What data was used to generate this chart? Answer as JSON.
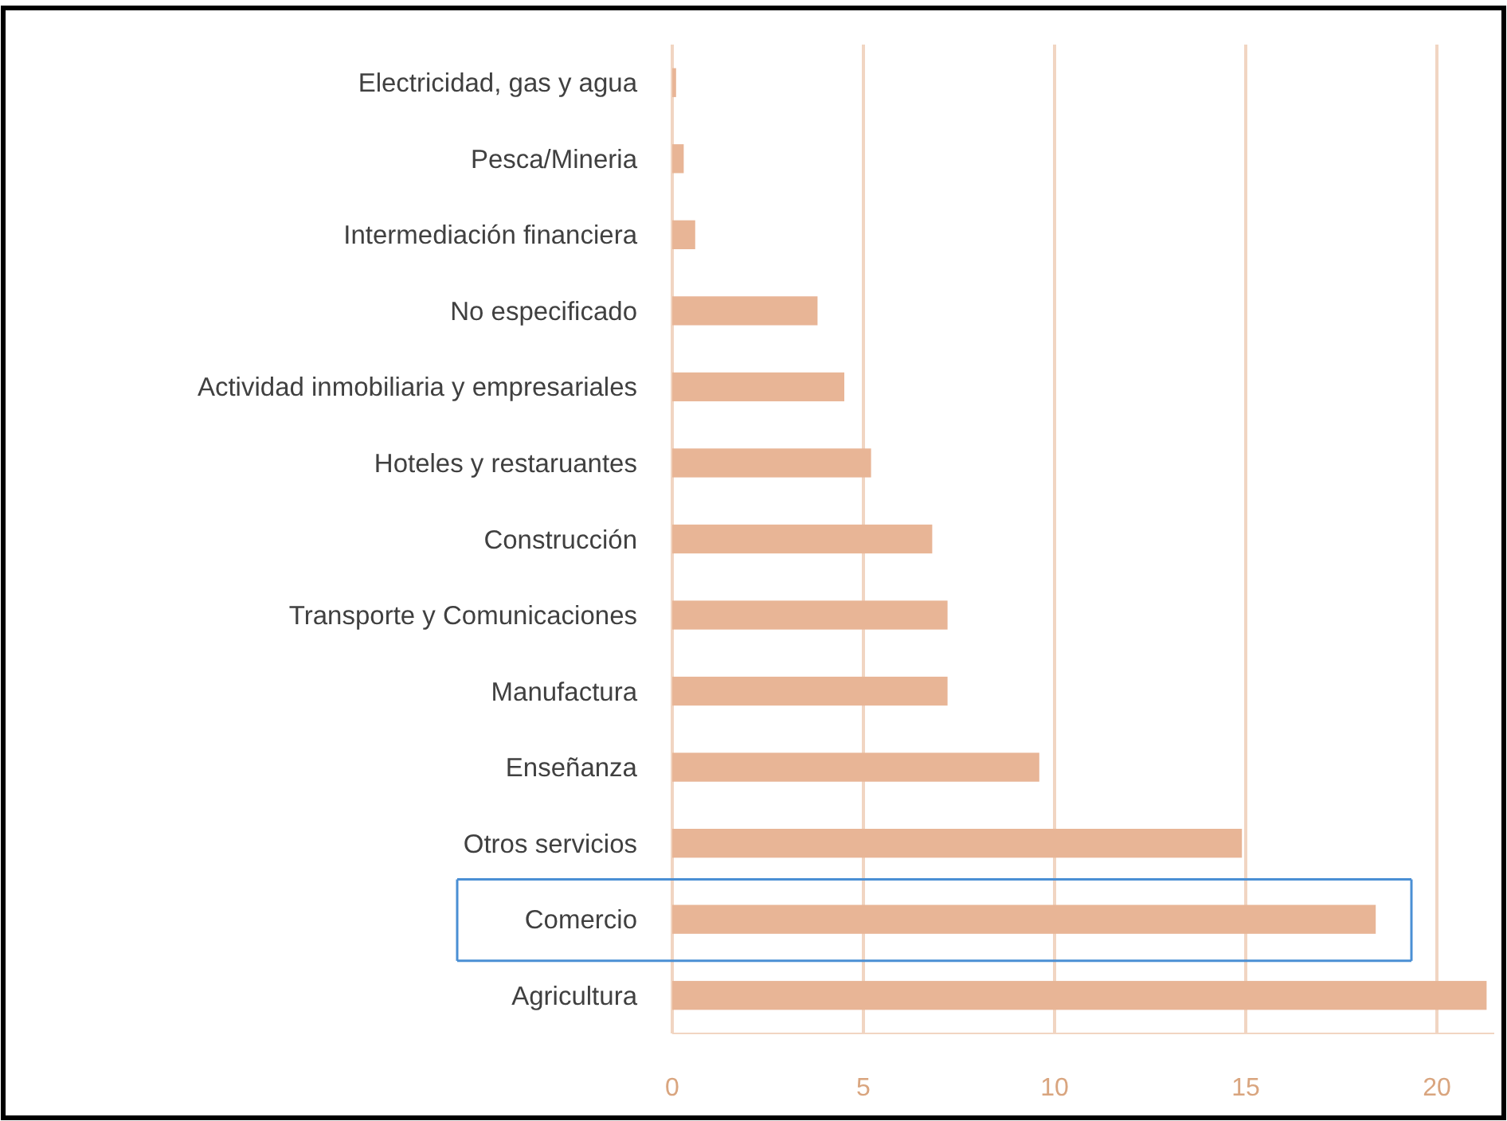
{
  "chart_data": {
    "type": "bar",
    "orientation": "horizontal",
    "categories": [
      "Electricidad, gas y agua",
      "Pesca/Mineria",
      "Intermediación financiera",
      "No especificado",
      "Actividad inmobiliaria y empresariales",
      "Hoteles y restaruantes",
      "Construcción",
      "Transporte y Comunicaciones",
      "Manufactura",
      "Enseñanza",
      "Otros servicios",
      "Comercio",
      "Agricultura"
    ],
    "values": [
      0.1,
      0.3,
      0.6,
      3.8,
      4.5,
      5.2,
      6.8,
      7.2,
      7.2,
      9.6,
      14.9,
      18.4,
      21.3
    ],
    "color": "#e8b596",
    "xlim": [
      0,
      21.5
    ],
    "xticks": [
      0,
      5,
      10,
      15,
      20
    ],
    "grid": "x"
  }
}
